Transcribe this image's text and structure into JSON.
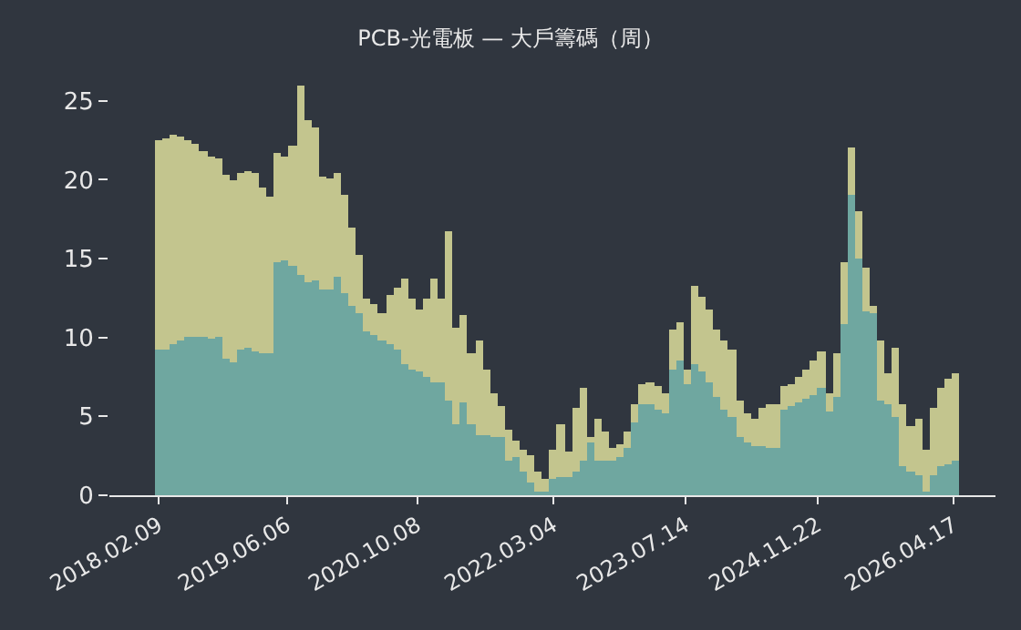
{
  "chart_data": {
    "type": "bar",
    "title": "PCB-光電板 — 大戶籌碼（周）",
    "stacked": true,
    "x": [
      "2018-02-09",
      "2018-03-09",
      "2018-04-06",
      "2018-05-04",
      "2018-06-01",
      "2018-06-29",
      "2018-07-27",
      "2018-08-24",
      "2018-09-21",
      "2018-10-19",
      "2018-11-16",
      "2018-12-14",
      "2019-01-11",
      "2019-02-08",
      "2019-03-08",
      "2019-04-05",
      "2019-05-03",
      "2019-05-31",
      "2019-06-28",
      "2019-07-26",
      "2019-08-23",
      "2019-09-20",
      "2019-10-18",
      "2019-11-15",
      "2019-12-13",
      "2020-01-10",
      "2020-02-07",
      "2020-03-06",
      "2020-04-03",
      "2020-05-01",
      "2020-05-29",
      "2020-06-26",
      "2020-07-24",
      "2020-08-21",
      "2020-09-18",
      "2020-10-16",
      "2020-11-13",
      "2020-12-11",
      "2021-01-08",
      "2021-02-05",
      "2021-03-05",
      "2021-04-02",
      "2021-04-30",
      "2021-05-28",
      "2021-06-25",
      "2021-07-23",
      "2021-08-20",
      "2021-09-17",
      "2021-10-15",
      "2021-11-12",
      "2021-12-10",
      "2022-01-07",
      "2022-02-04",
      "2022-03-04",
      "2022-04-01",
      "2022-04-29",
      "2022-05-27",
      "2022-06-24",
      "2022-07-22",
      "2022-08-19",
      "2022-09-16",
      "2022-10-14",
      "2022-11-11",
      "2022-12-09",
      "2023-01-06",
      "2023-02-03",
      "2023-03-03",
      "2023-03-31",
      "2023-04-28",
      "2023-05-26",
      "2023-06-23",
      "2023-07-21",
      "2023-08-18",
      "2023-09-15",
      "2023-10-13",
      "2023-11-10",
      "2023-12-08",
      "2024-01-05",
      "2024-02-02",
      "2024-03-01",
      "2024-03-29",
      "2024-04-26",
      "2024-05-24",
      "2024-06-21",
      "2024-07-19",
      "2024-08-16",
      "2024-09-13",
      "2024-10-11",
      "2024-11-08",
      "2024-12-06",
      "2025-01-03",
      "2025-01-31",
      "2025-02-28",
      "2025-03-28",
      "2025-04-25",
      "2025-05-23",
      "2025-06-20",
      "2025-07-18",
      "2025-08-15",
      "2025-09-12",
      "2025-10-10",
      "2025-11-07",
      "2025-12-05",
      "2026-01-02",
      "2026-01-30",
      "2026-02-27",
      "2026-03-27",
      "2026-04-24"
    ],
    "series": [
      {
        "color": "#6fa7a0",
        "values": [
          9.2,
          9.2,
          9.6,
          9.8,
          10.0,
          10.0,
          10.0,
          9.9,
          10.0,
          8.6,
          8.4,
          9.2,
          9.4,
          9.1,
          9.0,
          9.0,
          14.8,
          14.9,
          14.5,
          14.0,
          13.5,
          13.6,
          13.1,
          13.0,
          13.8,
          12.8,
          12.0,
          11.6,
          10.4,
          10.2,
          9.8,
          9.6,
          9.2,
          8.3,
          8.0,
          7.9,
          7.5,
          7.2,
          7.1,
          6.0,
          4.5,
          5.9,
          4.5,
          3.8,
          3.8,
          3.7,
          3.7,
          2.2,
          2.4,
          1.5,
          0.8,
          0.2,
          0.2,
          1.0,
          1.2,
          1.2,
          1.5,
          2.2,
          3.3,
          2.2,
          2.2,
          2.2,
          2.4,
          3.0,
          4.6,
          5.8,
          5.8,
          5.4,
          5.2,
          8.0,
          8.5,
          7.0,
          8.3,
          7.8,
          7.2,
          6.2,
          5.4,
          5.0,
          3.7,
          3.4,
          3.1,
          3.1,
          3.0,
          3.0,
          5.4,
          5.6,
          5.9,
          6.1,
          6.4,
          6.8,
          5.3,
          6.2,
          10.9,
          19.0,
          15.0,
          11.7,
          11.5,
          6.0,
          5.8,
          5.0,
          1.8,
          1.5,
          1.3,
          0.2,
          1.3,
          1.8,
          2.0,
          2.2
        ]
      },
      {
        "color": "#c3c58e",
        "values": [
          13.3,
          13.4,
          13.3,
          12.9,
          12.5,
          12.3,
          11.8,
          11.6,
          11.3,
          11.7,
          11.6,
          11.2,
          11.2,
          11.3,
          10.5,
          9.9,
          6.9,
          6.6,
          7.7,
          12.0,
          10.3,
          9.7,
          7.1,
          7.1,
          6.6,
          6.2,
          5.0,
          3.6,
          2.1,
          1.9,
          1.7,
          3.1,
          4.0,
          5.4,
          4.5,
          3.9,
          5.0,
          6.5,
          5.4,
          10.7,
          6.1,
          5.5,
          4.5,
          6.0,
          4.2,
          2.8,
          1.9,
          1.9,
          1.1,
          1.4,
          1.7,
          1.3,
          0.8,
          1.9,
          3.3,
          1.6,
          4.0,
          4.6,
          0.4,
          2.6,
          1.8,
          0.8,
          0.8,
          1.0,
          1.2,
          1.2,
          1.3,
          1.5,
          1.3,
          2.5,
          2.5,
          1.0,
          5.0,
          4.8,
          4.6,
          4.3,
          4.4,
          4.2,
          2.3,
          1.8,
          1.7,
          2.4,
          2.8,
          2.8,
          1.5,
          1.4,
          1.6,
          1.9,
          2.1,
          2.3,
          1.2,
          2.8,
          3.9,
          3.0,
          3.0,
          2.7,
          0.5,
          3.8,
          1.9,
          4.4,
          4.0,
          2.9,
          3.6,
          2.7,
          4.2,
          5.0,
          5.4,
          5.5
        ]
      }
    ],
    "xlim": [
      "2017-08-08",
      "2026-09-22"
    ],
    "xticks": [
      {
        "value": "2018-02-09",
        "label": "2018.02.09"
      },
      {
        "value": "2019-06-06",
        "label": "2019.06.06"
      },
      {
        "value": "2020-10-08",
        "label": "2020.10.08"
      },
      {
        "value": "2022-03-04",
        "label": "2022.03.04"
      },
      {
        "value": "2023-07-14",
        "label": "2023.07.14"
      },
      {
        "value": "2024-11-22",
        "label": "2024.11.22"
      },
      {
        "value": "2026-04-17",
        "label": "2026.04.17"
      }
    ],
    "ylim": [
      0,
      26.2
    ],
    "yticks": [
      0,
      5,
      10,
      15,
      20,
      25
    ],
    "grid": false
  }
}
